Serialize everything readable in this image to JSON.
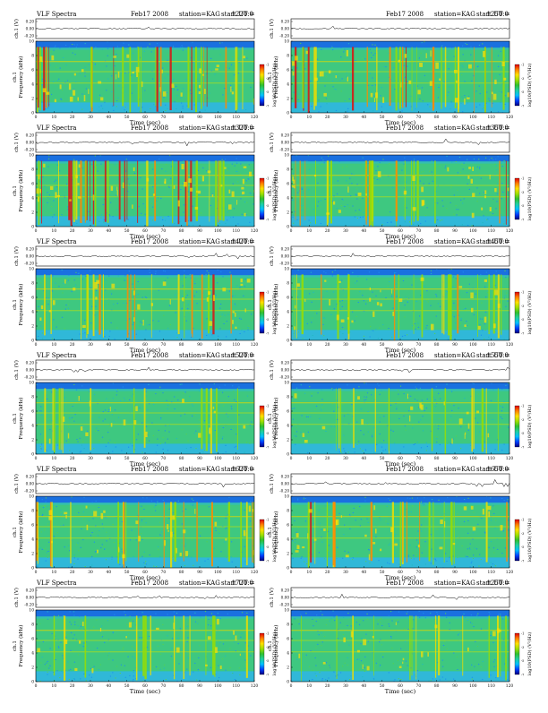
{
  "panel_common": {
    "left_title": "VLF Spectra",
    "date": "Feb17 2008",
    "station": "station=KAG",
    "start_prefix": "start  UT  ="
  },
  "axes": {
    "waveform_label": "ch.1 (V)",
    "waveform_ticks": [
      "0.20",
      "0.00",
      "-0.20"
    ],
    "freq_label_top": "ch.1",
    "freq_label": "Frequency  (kHz)",
    "freq_ticks": [
      "10",
      "8",
      "6",
      "4",
      "2",
      "0"
    ],
    "time_label": "Time  (sec)",
    "time_ticks": [
      "0",
      "10",
      "20",
      "30",
      "40",
      "50",
      "60",
      "70",
      "80",
      "90",
      "100",
      "110",
      "120"
    ],
    "colorbar_label": "log10(PSD) (V²/Hz)",
    "colorbar_ticks": [
      "-1",
      "-3",
      "-5",
      "-7"
    ]
  },
  "chart_data": [
    {
      "type": "heatmap",
      "start_ut": "1220:0",
      "show_left_title": true,
      "xlim": [
        0,
        120
      ],
      "ylim": [
        0,
        10
      ],
      "colorbar_side": "right-outside",
      "intensity": "high"
    },
    {
      "type": "heatmap",
      "start_ut": "1250:0",
      "show_left_title": false,
      "xlim": [
        0,
        120
      ],
      "ylim": [
        0,
        10
      ],
      "colorbar_side": "left",
      "intensity": "high"
    },
    {
      "type": "heatmap",
      "start_ut": "1320:0",
      "show_left_title": true,
      "xlim": [
        0,
        120
      ],
      "ylim": [
        0,
        10
      ],
      "colorbar_side": "right-outside",
      "intensity": "very-high"
    },
    {
      "type": "heatmap",
      "start_ut": "1350:0",
      "show_left_title": false,
      "xlim": [
        0,
        120
      ],
      "ylim": [
        0,
        10
      ],
      "colorbar_side": "left",
      "intensity": "medium"
    },
    {
      "type": "heatmap",
      "start_ut": "1420:0",
      "show_left_title": true,
      "xlim": [
        0,
        120
      ],
      "ylim": [
        0,
        10
      ],
      "colorbar_side": "right-outside",
      "intensity": "medium"
    },
    {
      "type": "heatmap",
      "start_ut": "1450:0",
      "show_left_title": false,
      "xlim": [
        0,
        120
      ],
      "ylim": [
        0,
        10
      ],
      "colorbar_side": "left",
      "intensity": "medium"
    },
    {
      "type": "heatmap",
      "start_ut": "1520:0",
      "show_left_title": true,
      "xlim": [
        0,
        120
      ],
      "ylim": [
        0,
        10
      ],
      "colorbar_side": "right-outside",
      "intensity": "low"
    },
    {
      "type": "heatmap",
      "start_ut": "1550:0",
      "show_left_title": false,
      "xlim": [
        0,
        120
      ],
      "ylim": [
        0,
        10
      ],
      "colorbar_side": "left",
      "intensity": "low"
    },
    {
      "type": "heatmap",
      "start_ut": "1620:0",
      "show_left_title": true,
      "xlim": [
        0,
        120
      ],
      "ylim": [
        0,
        10
      ],
      "colorbar_side": "right-outside",
      "intensity": "medium"
    },
    {
      "type": "heatmap",
      "start_ut": "1650:0",
      "show_left_title": false,
      "xlim": [
        0,
        120
      ],
      "ylim": [
        0,
        10
      ],
      "colorbar_side": "left",
      "intensity": "medium"
    },
    {
      "type": "heatmap",
      "start_ut": "1720:0",
      "show_left_title": true,
      "xlim": [
        0,
        120
      ],
      "ylim": [
        0,
        10
      ],
      "colorbar_side": "right-outside",
      "intensity": "low"
    },
    {
      "type": "heatmap",
      "start_ut": "1250:0",
      "show_left_title": false,
      "xlim": [
        0,
        120
      ],
      "ylim": [
        0,
        10
      ],
      "colorbar_side": "left",
      "intensity": "low"
    }
  ]
}
